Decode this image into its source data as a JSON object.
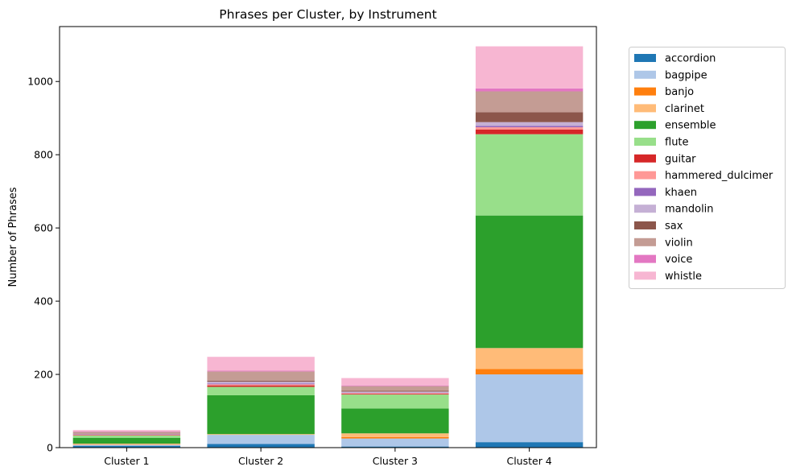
{
  "chart_data": {
    "type": "bar",
    "stacked": true,
    "title": "Phrases per Cluster, by Instrument",
    "xlabel": "",
    "ylabel": "Number of Phrases",
    "ylim": [
      0,
      1150
    ],
    "yticks": [
      0,
      200,
      400,
      600,
      800,
      1000
    ],
    "grid": false,
    "legend_position": "right",
    "categories": [
      "Cluster 1",
      "Cluster 2",
      "Cluster 3",
      "Cluster 4"
    ],
    "series": [
      {
        "name": "accordion",
        "color": "#1f77b4",
        "values": [
          5,
          10,
          3,
          15
        ]
      },
      {
        "name": "bagpipe",
        "color": "#aec7e8",
        "values": [
          3,
          25,
          22,
          185
        ]
      },
      {
        "name": "banjo",
        "color": "#ff7f0e",
        "values": [
          1,
          0,
          4,
          15
        ]
      },
      {
        "name": "clarinet",
        "color": "#ffbb78",
        "values": [
          2,
          2,
          10,
          57
        ]
      },
      {
        "name": "ensemble",
        "color": "#2ca02c",
        "values": [
          16,
          106,
          68,
          362
        ]
      },
      {
        "name": "flute",
        "color": "#98df8a",
        "values": [
          6,
          23,
          38,
          222
        ]
      },
      {
        "name": "guitar",
        "color": "#d62728",
        "values": [
          1,
          4,
          2,
          13
        ]
      },
      {
        "name": "hammered_dulcimer",
        "color": "#ff9896",
        "values": [
          1,
          3,
          2,
          6
        ]
      },
      {
        "name": "khaen",
        "color": "#9467bd",
        "values": [
          1,
          2,
          1,
          4
        ]
      },
      {
        "name": "mandolin",
        "color": "#c5b0d5",
        "values": [
          1,
          5,
          3,
          10
        ]
      },
      {
        "name": "sax",
        "color": "#8c564b",
        "values": [
          1,
          3,
          2,
          27
        ]
      },
      {
        "name": "violin",
        "color": "#c49c94",
        "values": [
          5,
          25,
          13,
          57
        ]
      },
      {
        "name": "voice",
        "color": "#e377c2",
        "values": [
          1,
          2,
          2,
          8
        ]
      },
      {
        "name": "whistle",
        "color": "#f7b6d2",
        "values": [
          4,
          38,
          20,
          115
        ]
      }
    ]
  }
}
